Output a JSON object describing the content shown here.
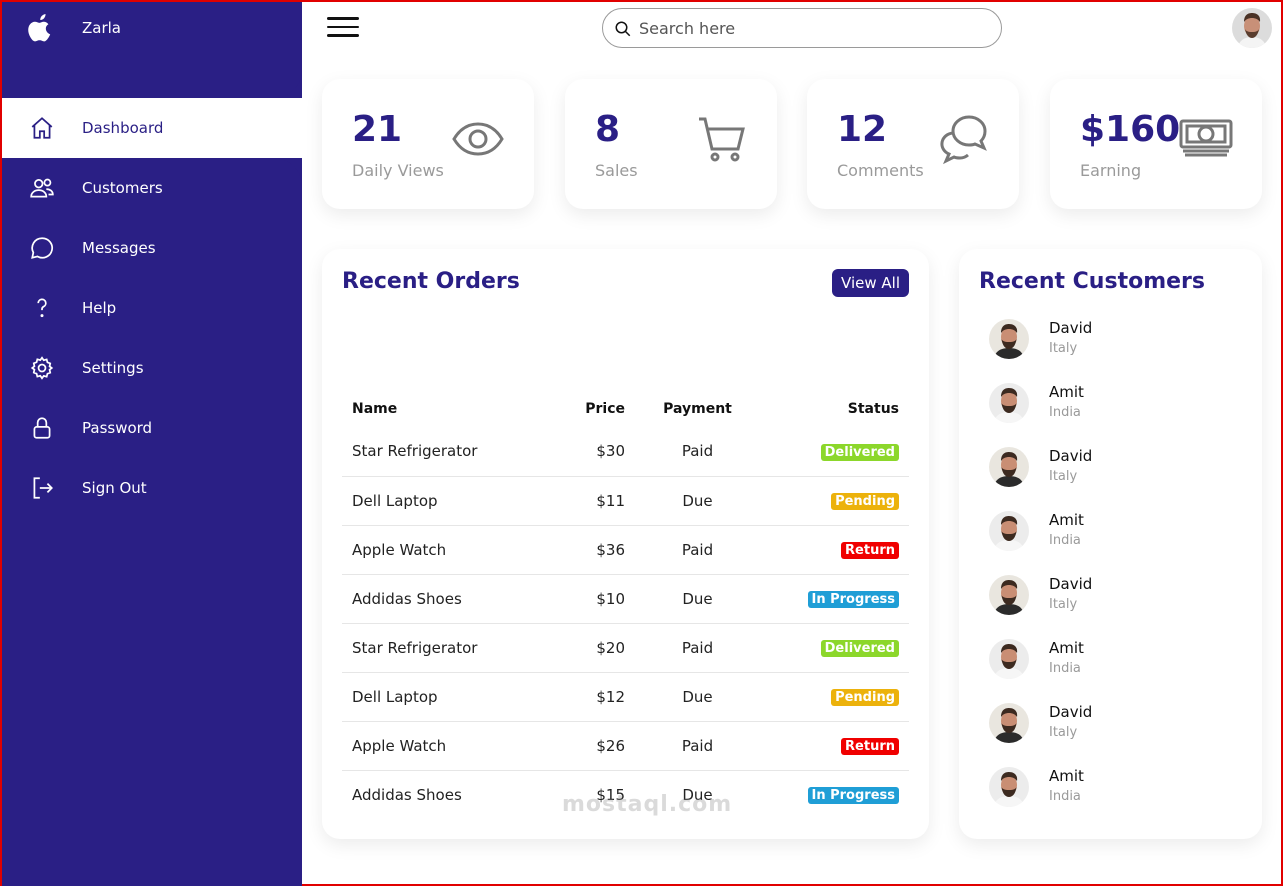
{
  "app": {
    "name": "Zarla"
  },
  "sidebar": {
    "items": [
      {
        "label": "Dashboard",
        "icon": "home-icon"
      },
      {
        "label": "Customers",
        "icon": "people-icon"
      },
      {
        "label": "Messages",
        "icon": "chat-icon"
      },
      {
        "label": "Help",
        "icon": "help-icon"
      },
      {
        "label": "Settings",
        "icon": "gear-icon"
      },
      {
        "label": "Password",
        "icon": "lock-icon"
      },
      {
        "label": "Sign Out",
        "icon": "signout-icon"
      }
    ],
    "active": "Dashboard"
  },
  "topbar": {
    "search_placeholder": "Search here"
  },
  "cards": [
    {
      "value": "21",
      "caption": "Daily Views",
      "icon": "eye-icon"
    },
    {
      "value": "8",
      "caption": "Sales",
      "icon": "cart-icon"
    },
    {
      "value": "12",
      "caption": "Comments",
      "icon": "comments-icon"
    },
    {
      "value": "$160",
      "caption": "Earning",
      "icon": "cash-icon"
    }
  ],
  "orders": {
    "title": "Recent Orders",
    "view_all": "View All",
    "columns": [
      "Name",
      "Price",
      "Payment",
      "Status"
    ],
    "rows": [
      {
        "name": "Star Refrigerator",
        "price": "$30",
        "payment": "Paid",
        "status": "Delivered",
        "status_color": "#8cd72b"
      },
      {
        "name": "Dell Laptop",
        "price": "$11",
        "payment": "Due",
        "status": "Pending",
        "status_color": "#ecb20c"
      },
      {
        "name": "Apple Watch",
        "price": "$36",
        "payment": "Paid",
        "status": "Return",
        "status_color": "#f00000"
      },
      {
        "name": "Addidas Shoes",
        "price": "$10",
        "payment": "Due",
        "status": "In Progress",
        "status_color": "#1f9ed6"
      },
      {
        "name": "Star Refrigerator",
        "price": "$20",
        "payment": "Paid",
        "status": "Delivered",
        "status_color": "#8cd72b"
      },
      {
        "name": "Dell Laptop",
        "price": "$12",
        "payment": "Due",
        "status": "Pending",
        "status_color": "#ecb20c"
      },
      {
        "name": "Apple Watch",
        "price": "$26",
        "payment": "Paid",
        "status": "Return",
        "status_color": "#f00000"
      },
      {
        "name": "Addidas Shoes",
        "price": "$15",
        "payment": "Due",
        "status": "In Progress",
        "status_color": "#1f9ed6"
      }
    ]
  },
  "customers": {
    "title": "Recent Customers",
    "items": [
      {
        "name": "David",
        "country": "Italy"
      },
      {
        "name": "Amit",
        "country": "India"
      },
      {
        "name": "David",
        "country": "Italy"
      },
      {
        "name": "Amit",
        "country": "India"
      },
      {
        "name": "David",
        "country": "Italy"
      },
      {
        "name": "Amit",
        "country": "India"
      },
      {
        "name": "David",
        "country": "Italy"
      },
      {
        "name": "Amit",
        "country": "India"
      }
    ]
  },
  "watermark": "mostaql.com",
  "colors": {
    "primary": "#2a1f85",
    "border": "#e10000"
  }
}
